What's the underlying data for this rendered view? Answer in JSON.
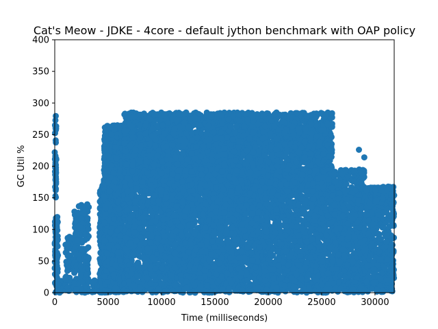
{
  "chart_data": {
    "type": "scatter",
    "title": "Cat's Meow - JDKE - 4core -  default jython benchmark with OAP policy",
    "xlabel": "Time (milliseconds)",
    "ylabel": "GC Util %",
    "xlim": [
      0,
      31800
    ],
    "ylim": [
      0,
      400
    ],
    "xticks": [
      0,
      5000,
      10000,
      15000,
      20000,
      25000,
      30000
    ],
    "yticks": [
      0,
      50,
      100,
      150,
      200,
      250,
      300,
      350,
      400
    ],
    "grid": false,
    "marker_color": "#1f77b4",
    "clusters": [
      {
        "x": [
          0,
          150
        ],
        "y": [
          150,
          280
        ],
        "n": 40
      },
      {
        "x": [
          0,
          300
        ],
        "y": [
          0,
          120
        ],
        "n": 90
      },
      {
        "x": [
          300,
          800
        ],
        "y": [
          0,
          20
        ],
        "n": 40
      },
      {
        "x": [
          1000,
          1600
        ],
        "y": [
          0,
          90
        ],
        "n": 50
      },
      {
        "x": [
          1800,
          3200
        ],
        "y": [
          0,
          140
        ],
        "n": 200
      },
      {
        "x": [
          3500,
          4600
        ],
        "y": [
          0,
          20
        ],
        "n": 50
      },
      {
        "x": [
          4200,
          5200
        ],
        "y": [
          0,
          170
        ],
        "n": 300
      },
      {
        "x": [
          4600,
          6500
        ],
        "y": [
          0,
          265
        ],
        "n": 1100
      },
      {
        "x": [
          6500,
          26000
        ],
        "y": [
          160,
          285
        ],
        "n": 3600
      },
      {
        "x": [
          6500,
          29000
        ],
        "y": [
          0,
          195
        ],
        "n": 7800
      },
      {
        "x": [
          29000,
          31800
        ],
        "y": [
          0,
          168
        ],
        "n": 500
      },
      {
        "x": [
          30000,
          31800
        ],
        "y": [
          140,
          168
        ],
        "n": 120
      }
    ],
    "points": [
      {
        "x": 28500,
        "y": 226
      },
      {
        "x": 29000,
        "y": 214
      },
      {
        "x": 31600,
        "y": 60
      },
      {
        "x": 31700,
        "y": 45
      },
      {
        "x": 29200,
        "y": 18
      },
      {
        "x": 30500,
        "y": 22
      },
      {
        "x": 31200,
        "y": 20
      }
    ]
  }
}
